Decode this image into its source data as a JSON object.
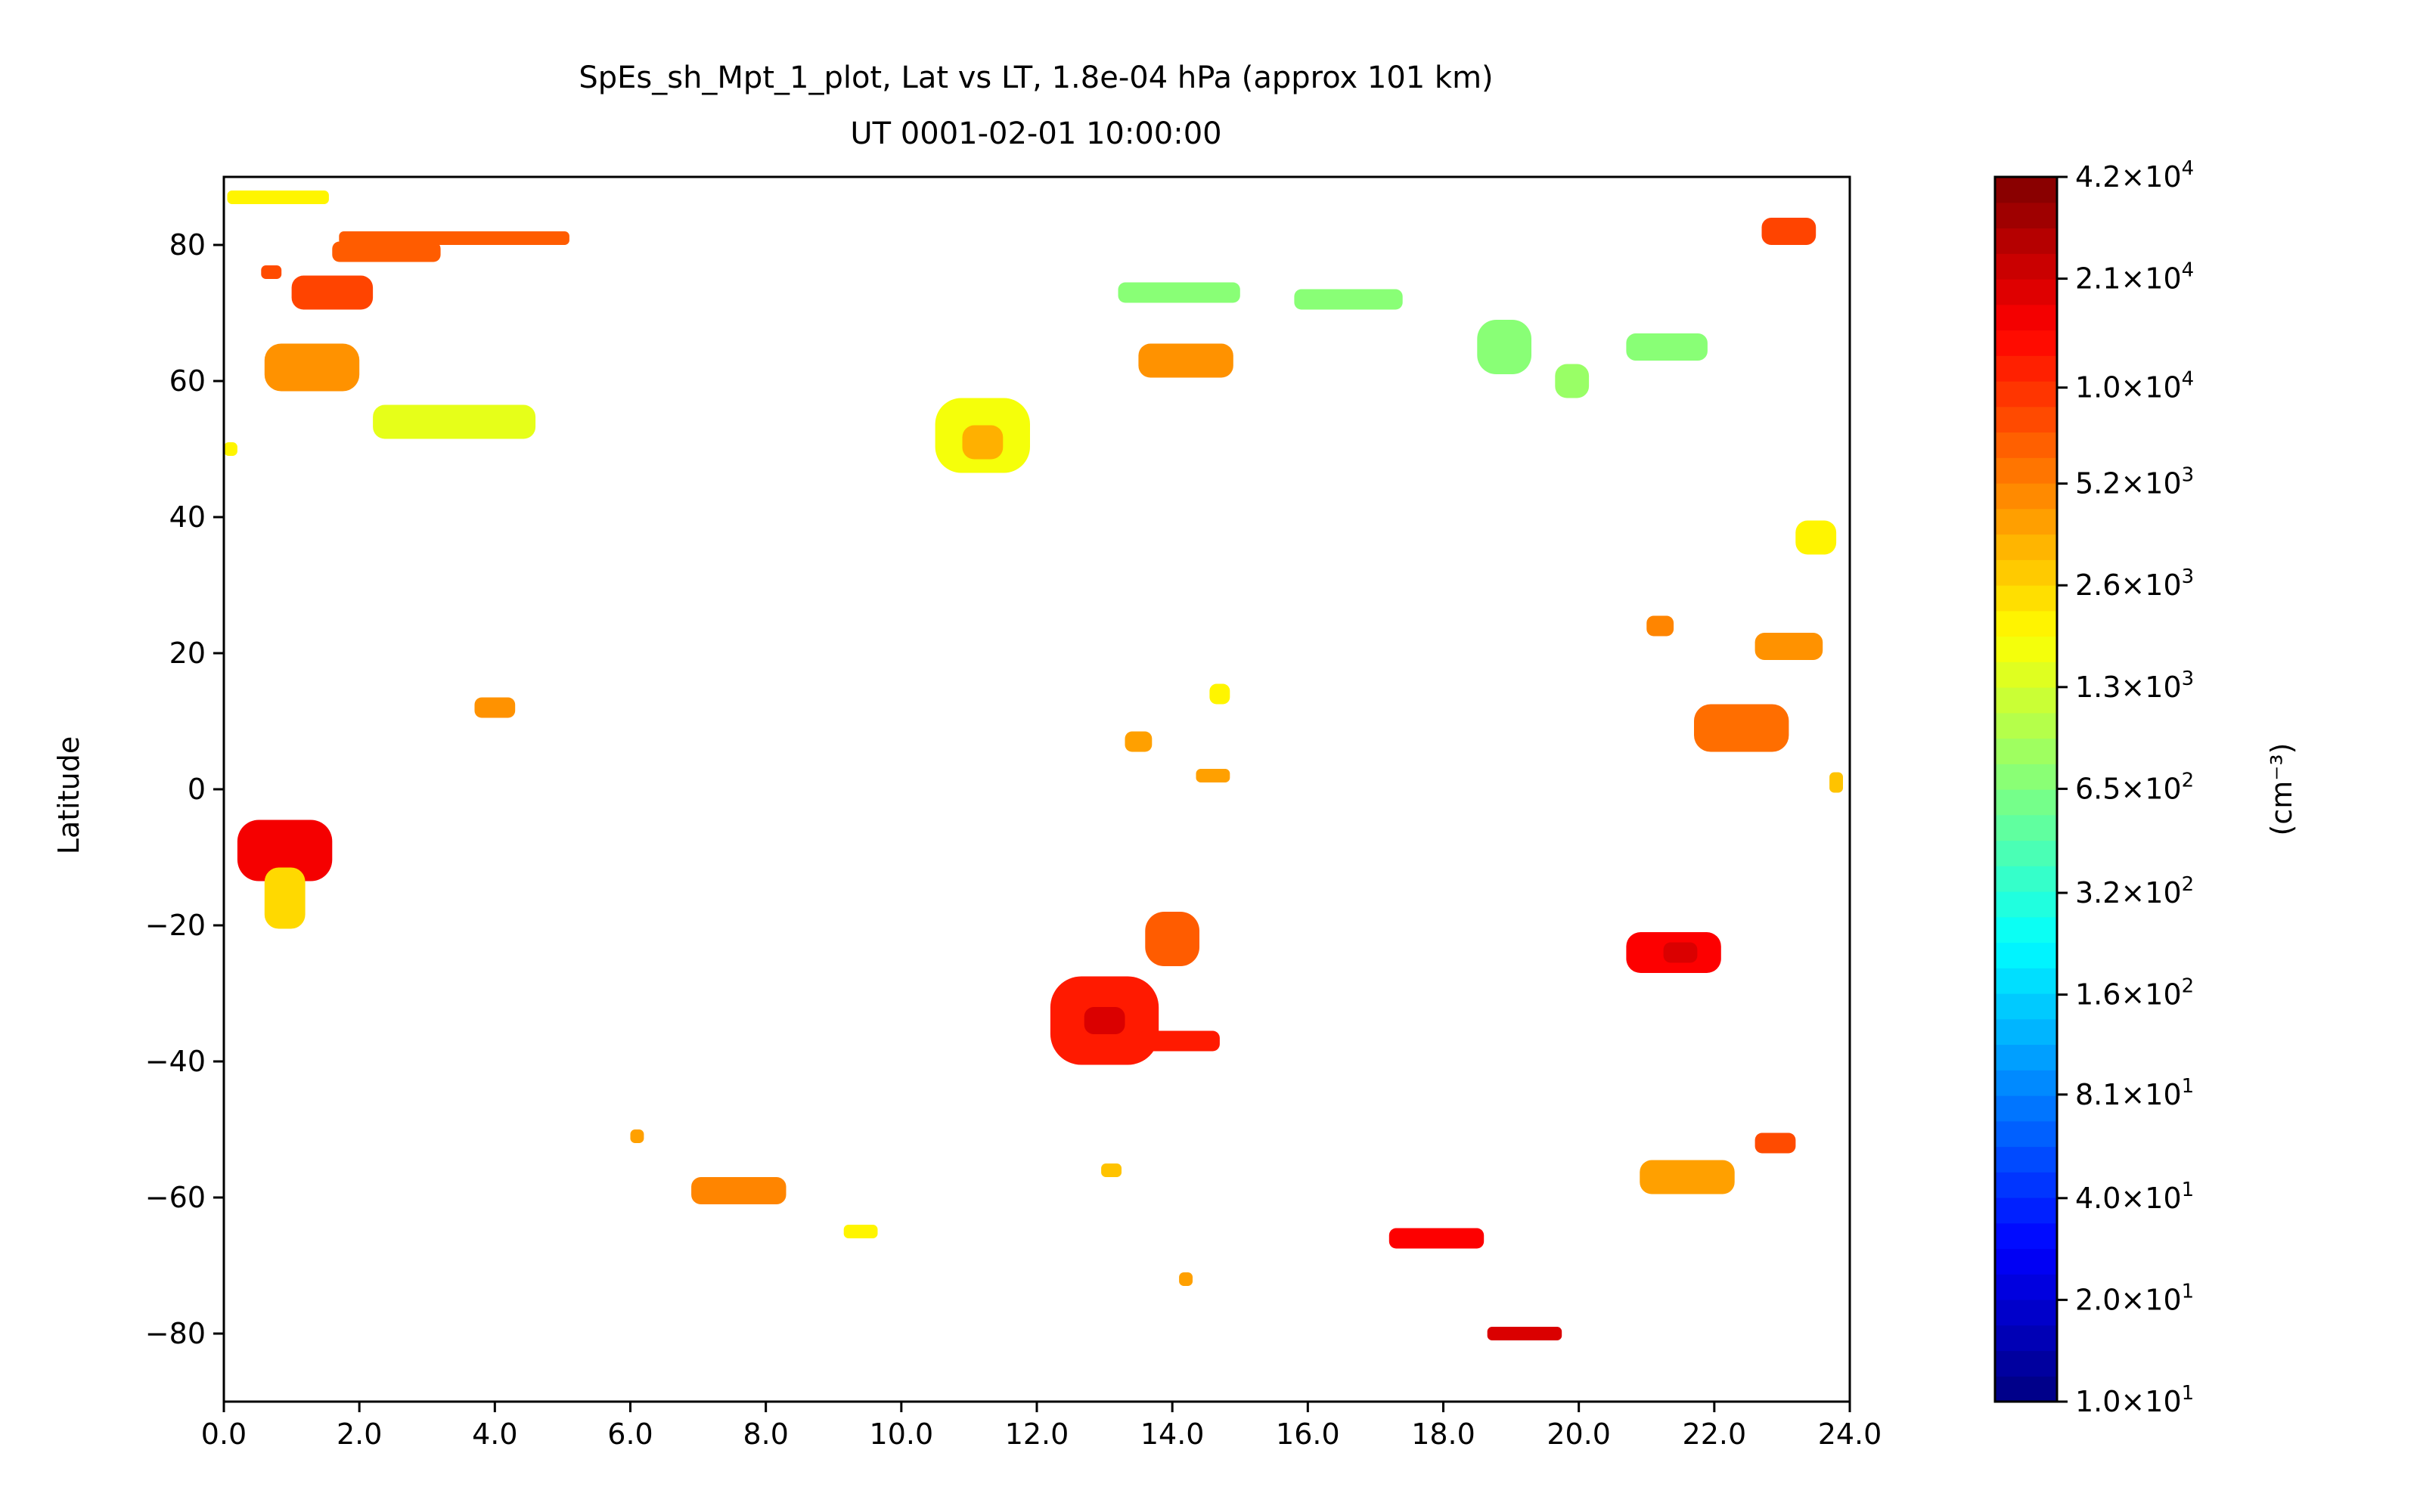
{
  "chart_data": {
    "type": "heatmap",
    "title": "SpEs_sh_Mpt_1_plot, Lat vs LT, 1.8e-04 hPa (approx 101 km)",
    "subtitle": "UT 0001-02-01 10:00:00",
    "xlabel": "",
    "ylabel": "Latitude",
    "xlim": [
      0,
      24
    ],
    "ylim": [
      -90,
      90
    ],
    "x_ticks": [
      0,
      2,
      4,
      6,
      8,
      10,
      12,
      14,
      16,
      18,
      20,
      22,
      24
    ],
    "x_tick_labels": [
      "0.0",
      "2.0",
      "4.0",
      "6.0",
      "8.0",
      "10.0",
      "12.0",
      "14.0",
      "16.0",
      "18.0",
      "20.0",
      "22.0",
      "24.0"
    ],
    "y_ticks": [
      80,
      60,
      40,
      20,
      0,
      -20,
      -40,
      -60,
      -80
    ],
    "y_tick_labels": [
      "80",
      "60",
      "40",
      "20",
      "0",
      "−20",
      "−40",
      "−60",
      "−80"
    ],
    "colormap": "jet",
    "colorbar": {
      "label": "(cm⁻³)",
      "scale": "log",
      "min": 10,
      "max": 42000,
      "ticks": [
        {
          "value": 42000,
          "mantissa": "4.2",
          "exp": "4"
        },
        {
          "value": 21000,
          "mantissa": "2.1",
          "exp": "4"
        },
        {
          "value": 10000,
          "mantissa": "1.0",
          "exp": "4"
        },
        {
          "value": 5200,
          "mantissa": "5.2",
          "exp": "3"
        },
        {
          "value": 2600,
          "mantissa": "2.6",
          "exp": "3"
        },
        {
          "value": 1300,
          "mantissa": "1.3",
          "exp": "3"
        },
        {
          "value": 650,
          "mantissa": "6.5",
          "exp": "2"
        },
        {
          "value": 320,
          "mantissa": "3.2",
          "exp": "2"
        },
        {
          "value": 160,
          "mantissa": "1.6",
          "exp": "2"
        },
        {
          "value": 81,
          "mantissa": "8.1",
          "exp": "1"
        },
        {
          "value": 40,
          "mantissa": "4.0",
          "exp": "1"
        },
        {
          "value": 20,
          "mantissa": "2.0",
          "exp": "1"
        },
        {
          "value": 10,
          "mantissa": "1.0",
          "exp": "1"
        }
      ]
    },
    "patches": [
      {
        "lt": 0.8,
        "lat": 87,
        "dlt": 1.5,
        "dlat": 2,
        "value": 2000
      },
      {
        "lt": 3.4,
        "lat": 81,
        "dlt": 3.4,
        "dlat": 2,
        "value": 7000
      },
      {
        "lt": 2.4,
        "lat": 79,
        "dlt": 1.6,
        "dlat": 3,
        "value": 7000
      },
      {
        "lt": 1.6,
        "lat": 73,
        "dlt": 1.2,
        "dlat": 5,
        "value": 8500
      },
      {
        "lt": 0.7,
        "lat": 76,
        "dlt": 0.3,
        "dlat": 2,
        "value": 8000
      },
      {
        "lt": 1.3,
        "lat": 62,
        "dlt": 1.4,
        "dlat": 7,
        "value": 4500
      },
      {
        "lt": 3.4,
        "lat": 54,
        "dlt": 2.4,
        "dlat": 5,
        "value": 1500
      },
      {
        "lt": 0.1,
        "lat": 50,
        "dlt": 0.2,
        "dlat": 2,
        "value": 2000
      },
      {
        "lt": 11.2,
        "lat": 52,
        "dlt": 1.4,
        "dlat": 11,
        "value": 1700
      },
      {
        "lt": 11.2,
        "lat": 51,
        "dlt": 0.6,
        "dlat": 5,
        "value": 3500
      },
      {
        "lt": 14.1,
        "lat": 73,
        "dlt": 1.8,
        "dlat": 3,
        "value": 700
      },
      {
        "lt": 16.6,
        "lat": 72,
        "dlt": 1.6,
        "dlat": 3,
        "value": 700
      },
      {
        "lt": 14.2,
        "lat": 63,
        "dlt": 1.4,
        "dlat": 5,
        "value": 4500
      },
      {
        "lt": 18.9,
        "lat": 65,
        "dlt": 0.8,
        "dlat": 8,
        "value": 700
      },
      {
        "lt": 21.3,
        "lat": 65,
        "dlt": 1.2,
        "dlat": 4,
        "value": 700
      },
      {
        "lt": 19.9,
        "lat": 60,
        "dlt": 0.5,
        "dlat": 5,
        "value": 800
      },
      {
        "lt": 23.1,
        "lat": 82,
        "dlt": 0.8,
        "dlat": 4,
        "value": 8500
      },
      {
        "lt": 23.5,
        "lat": 37,
        "dlt": 0.6,
        "dlat": 5,
        "value": 2000
      },
      {
        "lt": 23.1,
        "lat": 21,
        "dlt": 1.0,
        "dlat": 4,
        "value": 4500
      },
      {
        "lt": 21.2,
        "lat": 24,
        "dlt": 0.4,
        "dlat": 3,
        "value": 5000
      },
      {
        "lt": 22.4,
        "lat": 9,
        "dlt": 1.4,
        "dlat": 7,
        "value": 6000
      },
      {
        "lt": 23.8,
        "lat": 1,
        "dlt": 0.2,
        "dlat": 3,
        "value": 3000
      },
      {
        "lt": 4.0,
        "lat": 12,
        "dlt": 0.6,
        "dlat": 3,
        "value": 4500
      },
      {
        "lt": 14.7,
        "lat": 14,
        "dlt": 0.3,
        "dlat": 3,
        "value": 2000
      },
      {
        "lt": 13.5,
        "lat": 7,
        "dlt": 0.4,
        "dlat": 3,
        "value": 4000
      },
      {
        "lt": 14.6,
        "lat": 2,
        "dlt": 0.5,
        "dlat": 2,
        "value": 4000
      },
      {
        "lt": 0.9,
        "lat": -9,
        "dlt": 1.4,
        "dlat": 9,
        "value": 16000
      },
      {
        "lt": 0.9,
        "lat": -16,
        "dlt": 0.6,
        "dlat": 9,
        "value": 2500
      },
      {
        "lt": 13.0,
        "lat": -34,
        "dlt": 1.6,
        "dlat": 13,
        "value": 12000
      },
      {
        "lt": 13.0,
        "lat": -34,
        "dlt": 0.6,
        "dlat": 4,
        "value": 20000
      },
      {
        "lt": 14.0,
        "lat": -22,
        "dlt": 0.8,
        "dlat": 8,
        "value": 7000
      },
      {
        "lt": 14.1,
        "lat": -37,
        "dlt": 1.2,
        "dlat": 3,
        "value": 12000
      },
      {
        "lt": 21.4,
        "lat": -24,
        "dlt": 1.4,
        "dlat": 6,
        "value": 15000
      },
      {
        "lt": 21.5,
        "lat": -24,
        "dlt": 0.5,
        "dlat": 3,
        "value": 20000
      },
      {
        "lt": 6.1,
        "lat": -51,
        "dlt": 0.2,
        "dlat": 2,
        "value": 4000
      },
      {
        "lt": 7.6,
        "lat": -59,
        "dlt": 1.4,
        "dlat": 4,
        "value": 5000
      },
      {
        "lt": 13.1,
        "lat": -56,
        "dlt": 0.3,
        "dlat": 2,
        "value": 3000
      },
      {
        "lt": 9.4,
        "lat": -65,
        "dlt": 0.5,
        "dlat": 2,
        "value": 2000
      },
      {
        "lt": 21.6,
        "lat": -57,
        "dlt": 1.4,
        "dlat": 5,
        "value": 4000
      },
      {
        "lt": 22.9,
        "lat": -52,
        "dlt": 0.6,
        "dlat": 3,
        "value": 8000
      },
      {
        "lt": 17.9,
        "lat": -66,
        "dlt": 1.4,
        "dlat": 3,
        "value": 15000
      },
      {
        "lt": 19.2,
        "lat": -80,
        "dlt": 1.1,
        "dlat": 2,
        "value": 20000
      },
      {
        "lt": 14.2,
        "lat": -72,
        "dlt": 0.2,
        "dlat": 2,
        "value": 4000
      }
    ]
  }
}
